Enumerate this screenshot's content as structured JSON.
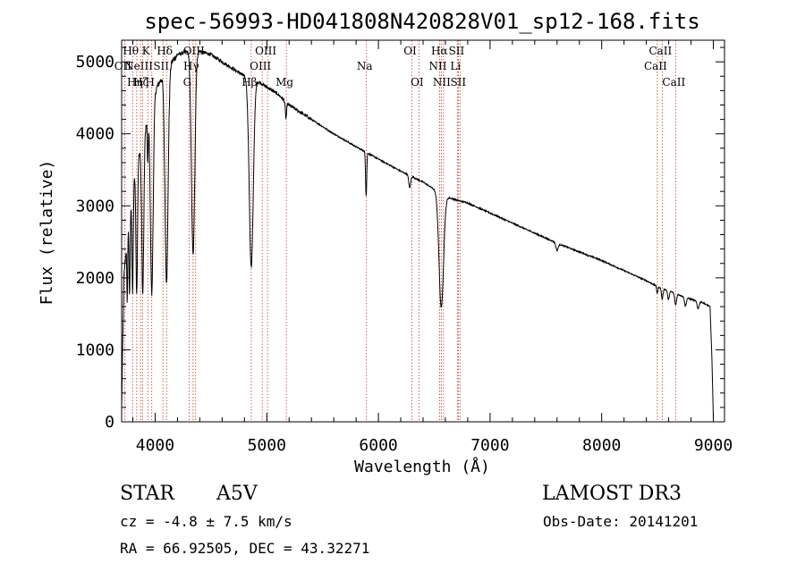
{
  "chart_data": {
    "type": "line",
    "title": "spec-56993-HD041808N420828V01_sp12-168.fits",
    "xlabel": "Wavelength (Å)",
    "ylabel": "Flux (relative)",
    "xlim": [
      3700,
      9100
    ],
    "ylim": [
      0,
      5300
    ],
    "xticks": [
      4000,
      5000,
      6000,
      7000,
      8000,
      9000
    ],
    "yticks": [
      0,
      1000,
      2000,
      3000,
      4000,
      5000
    ],
    "continuum": [
      [
        3700,
        200
      ],
      [
        3720,
        2000
      ],
      [
        3760,
        2800
      ],
      [
        3800,
        3300
      ],
      [
        3850,
        3700
      ],
      [
        3900,
        4000
      ],
      [
        3950,
        4300
      ],
      [
        4000,
        4600
      ],
      [
        4100,
        4900
      ],
      [
        4200,
        5100
      ],
      [
        4300,
        5150
      ],
      [
        4400,
        5150
      ],
      [
        4500,
        5100
      ],
      [
        4600,
        5000
      ],
      [
        4700,
        4900
      ],
      [
        4800,
        4800
      ],
      [
        4900,
        4750
      ],
      [
        5000,
        4650
      ],
      [
        5100,
        4550
      ],
      [
        5200,
        4400
      ],
      [
        5400,
        4200
      ],
      [
        5600,
        4000
      ],
      [
        5800,
        3820
      ],
      [
        6000,
        3650
      ],
      [
        6200,
        3480
      ],
      [
        6400,
        3330
      ],
      [
        6600,
        3130
      ],
      [
        6700,
        3080
      ],
      [
        6800,
        3040
      ],
      [
        7000,
        2900
      ],
      [
        7200,
        2760
      ],
      [
        7400,
        2620
      ],
      [
        7600,
        2480
      ],
      [
        7800,
        2360
      ],
      [
        8000,
        2240
      ],
      [
        8200,
        2100
      ],
      [
        8400,
        1960
      ],
      [
        8500,
        1880
      ],
      [
        8600,
        1820
      ],
      [
        8700,
        1760
      ],
      [
        8800,
        1700
      ],
      [
        8900,
        1660
      ],
      [
        8970,
        1600
      ],
      [
        8985,
        1000
      ],
      [
        9000,
        50
      ]
    ],
    "absorption": [
      {
        "w": 3750,
        "depth": 0.35,
        "width": 4
      },
      {
        "w": 3771,
        "depth": 0.4,
        "width": 5
      },
      {
        "w": 3798,
        "depth": 0.45,
        "width": 6
      },
      {
        "w": 3835,
        "depth": 0.5,
        "width": 7
      },
      {
        "w": 3889,
        "depth": 0.55,
        "width": 9
      },
      {
        "w": 3934,
        "depth": 0.15,
        "width": 4
      },
      {
        "w": 3970,
        "depth": 0.6,
        "width": 12
      },
      {
        "w": 4102,
        "depth": 0.6,
        "width": 14
      },
      {
        "w": 4340,
        "depth": 0.55,
        "width": 15
      },
      {
        "w": 4861,
        "depth": 0.55,
        "width": 18
      },
      {
        "w": 5172,
        "depth": 0.05,
        "width": 6
      },
      {
        "w": 5890,
        "depth": 0.16,
        "width": 5
      },
      {
        "w": 6280,
        "depth": 0.05,
        "width": 8
      },
      {
        "w": 6563,
        "depth": 0.5,
        "width": 20
      },
      {
        "w": 7600,
        "depth": 0.04,
        "width": 10
      },
      {
        "w": 8498,
        "depth": 0.05,
        "width": 6
      },
      {
        "w": 8542,
        "depth": 0.08,
        "width": 7
      },
      {
        "w": 8598,
        "depth": 0.07,
        "width": 7
      },
      {
        "w": 8662,
        "depth": 0.09,
        "width": 8
      },
      {
        "w": 8750,
        "depth": 0.07,
        "width": 8
      },
      {
        "w": 8863,
        "depth": 0.06,
        "width": 9
      }
    ],
    "line_markers": [
      {
        "w": 3727,
        "label": "OII",
        "row": 1
      },
      {
        "w": 3798,
        "label": "Hθ",
        "row": 0
      },
      {
        "w": 3835,
        "label": "Hη",
        "row": 2
      },
      {
        "w": 3869,
        "label": "NeIII",
        "row": 1
      },
      {
        "w": 3889,
        "label": "Hζ",
        "row": 2
      },
      {
        "w": 3934,
        "label": "K",
        "row": 0
      },
      {
        "w": 3970,
        "label": "H",
        "row": 2
      },
      {
        "w": 4070,
        "label": "SII",
        "row": 1
      },
      {
        "w": 4102,
        "label": "Hδ",
        "row": 0
      },
      {
        "w": 4304,
        "label": "G",
        "row": 2
      },
      {
        "w": 4340,
        "label": "Hγ",
        "row": 1
      },
      {
        "w": 4363,
        "label": "OIII",
        "row": 0
      },
      {
        "w": 4861,
        "label": "Hβ",
        "row": 2
      },
      {
        "w": 4959,
        "label": "OIII",
        "row": 1
      },
      {
        "w": 5007,
        "label": "OIII",
        "row": 0
      },
      {
        "w": 5175,
        "label": "Mg",
        "row": 2
      },
      {
        "w": 5893,
        "label": "Na",
        "row": 1
      },
      {
        "w": 6300,
        "label": "OI",
        "row": 0
      },
      {
        "w": 6363,
        "label": "OI",
        "row": 2
      },
      {
        "w": 6548,
        "label": "NII",
        "row": 1
      },
      {
        "w": 6563,
        "label": "Hα",
        "row": 0
      },
      {
        "w": 6583,
        "label": "NII",
        "row": 2
      },
      {
        "w": 6707,
        "label": "Li",
        "row": 1
      },
      {
        "w": 6716,
        "label": "SII",
        "row": 0
      },
      {
        "w": 6731,
        "label": "SII",
        "row": 2
      },
      {
        "w": 8498,
        "label": "CaII",
        "row": 1
      },
      {
        "w": 8542,
        "label": "CaII",
        "row": 0
      },
      {
        "w": 8662,
        "label": "CaII",
        "row": 2
      }
    ]
  },
  "info": {
    "object_class": "STAR",
    "subclass": "A5V",
    "survey": "LAMOST DR3",
    "redshift": "cz = -4.8 ± 7.5 km/s",
    "obs_date": "Obs-Date: 20141201",
    "coords": "RA =  66.92505, DEC =  43.32271"
  }
}
